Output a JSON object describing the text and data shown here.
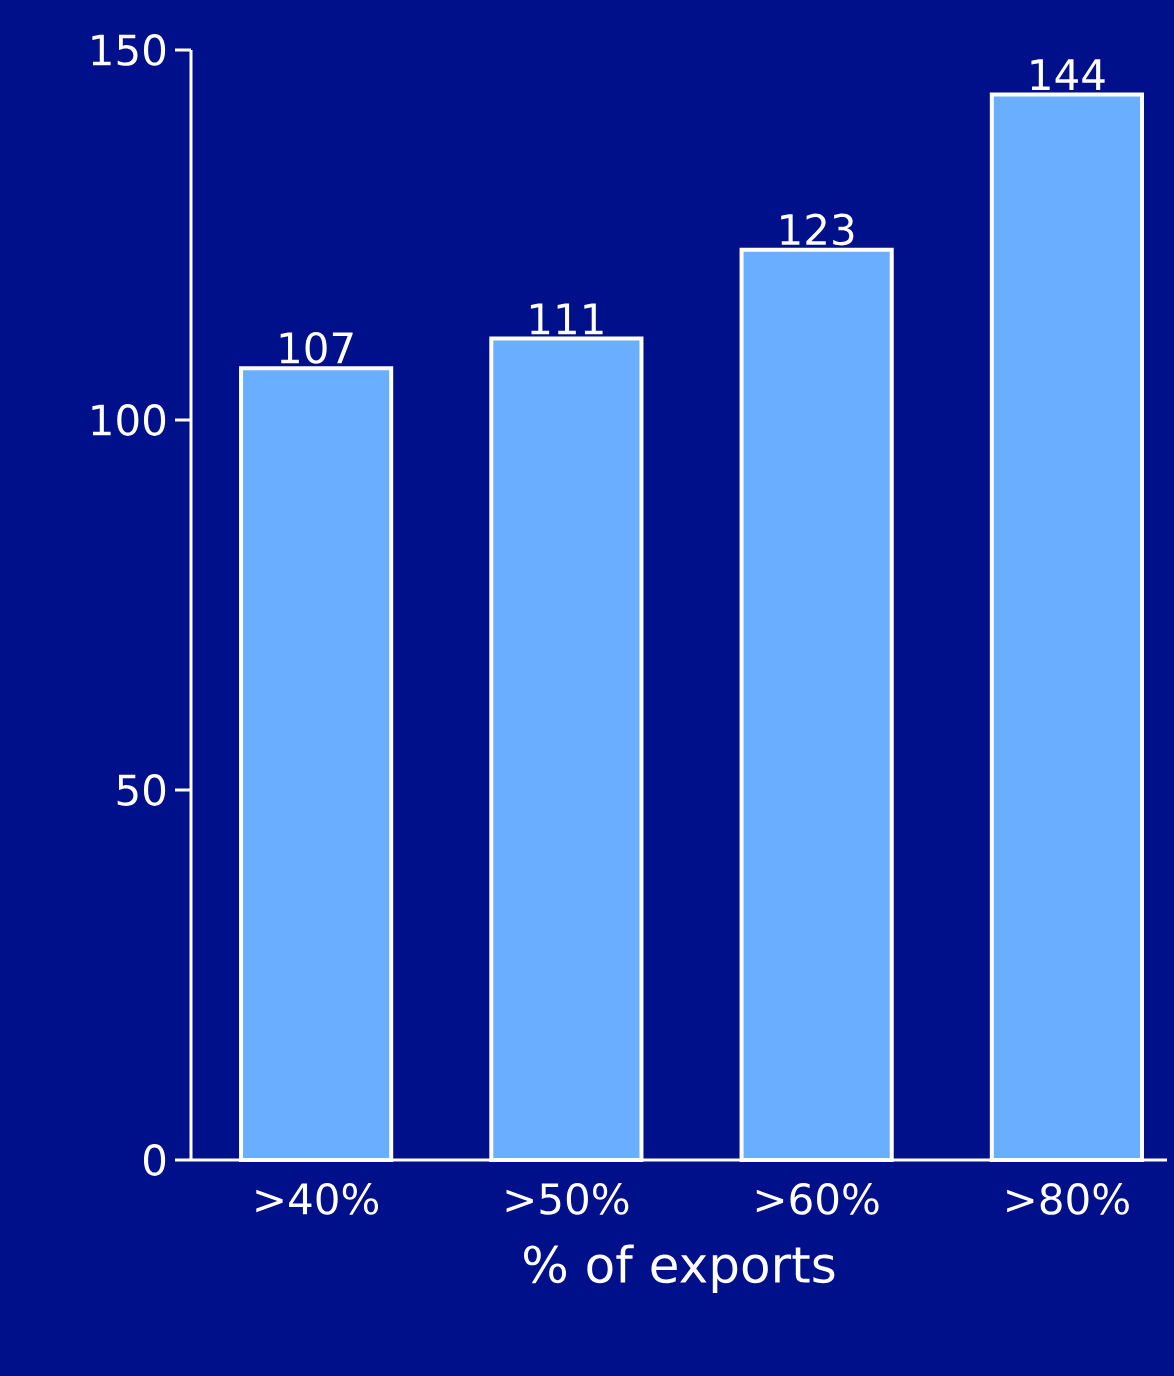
{
  "chart_data": {
    "type": "bar",
    "categories": [
      ">40%",
      ">50%",
      ">60%",
      ">80%"
    ],
    "values": [
      107,
      111,
      123,
      144
    ],
    "color": "#6aaeff",
    "xlabel": "% of exports",
    "ylim": [
      0,
      150
    ],
    "yticks": [
      0,
      50,
      100,
      150
    ],
    "data_labels": true
  }
}
